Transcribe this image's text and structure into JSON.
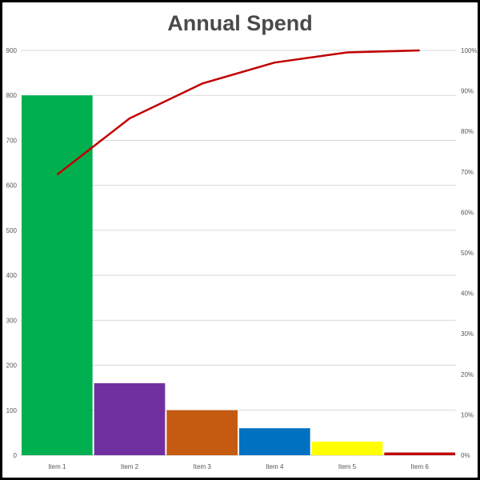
{
  "chart_data": {
    "type": "bar",
    "title": "Annual Spend",
    "categories": [
      "Item 1",
      "Item 2",
      "Item 3",
      "Item 4",
      "Item 5",
      "Item 6"
    ],
    "series": [
      {
        "type": "bar",
        "values": [
          800,
          160,
          100,
          60,
          30,
          6
        ],
        "colors": [
          "#00b050",
          "#7030a0",
          "#c55a11",
          "#0070c0",
          "#ffff00",
          "#c00000"
        ]
      },
      {
        "type": "line",
        "axis": "right",
        "values": [
          69.3,
          83.2,
          91.8,
          97.0,
          99.5,
          100
        ],
        "color": "#c00000"
      }
    ],
    "ylim": [
      0,
      900
    ],
    "yticks": [
      "0",
      "100",
      "200",
      "300",
      "400",
      "500",
      "600",
      "700",
      "800",
      "900"
    ],
    "y2lim": [
      0,
      100
    ],
    "y2ticks": [
      "0%",
      "10%",
      "20%",
      "30%",
      "40%",
      "50%",
      "60%",
      "70%",
      "80%",
      "90%",
      "100%"
    ],
    "grid": true,
    "legend": "none"
  }
}
